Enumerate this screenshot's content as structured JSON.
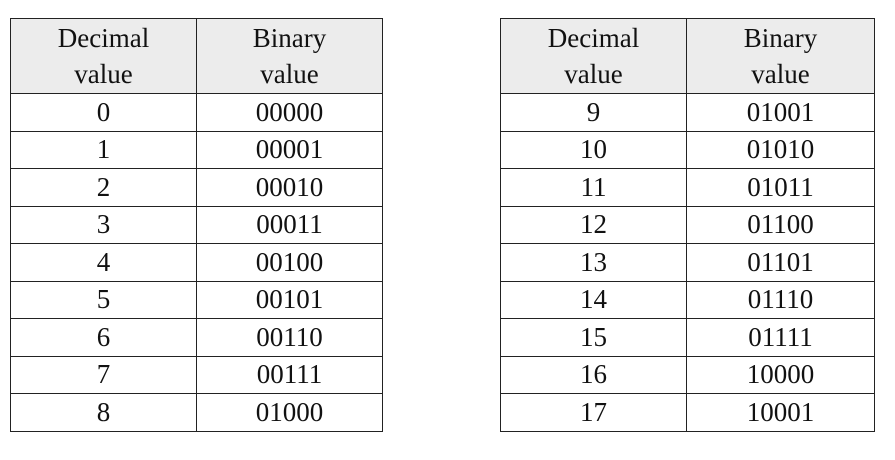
{
  "left_table": {
    "header": {
      "col1": [
        "Decimal",
        "value"
      ],
      "col2": [
        "Binary",
        "value"
      ]
    },
    "rows": [
      [
        "0",
        "00000"
      ],
      [
        "1",
        "00001"
      ],
      [
        "2",
        "00010"
      ],
      [
        "3",
        "00011"
      ],
      [
        "4",
        "00100"
      ],
      [
        "5",
        "00101"
      ],
      [
        "6",
        "00110"
      ],
      [
        "7",
        "00111"
      ],
      [
        "8",
        "01000"
      ]
    ]
  },
  "right_table": {
    "header": {
      "col1": [
        "Decimal",
        "value"
      ],
      "col2": [
        "Binary",
        "value"
      ]
    },
    "rows": [
      [
        "9",
        "01001"
      ],
      [
        "10",
        "01010"
      ],
      [
        "11",
        "01011"
      ],
      [
        "12",
        "01100"
      ],
      [
        "13",
        "01101"
      ],
      [
        "14",
        "01110"
      ],
      [
        "15",
        "01111"
      ],
      [
        "16",
        "10000"
      ],
      [
        "17",
        "10001"
      ]
    ]
  }
}
